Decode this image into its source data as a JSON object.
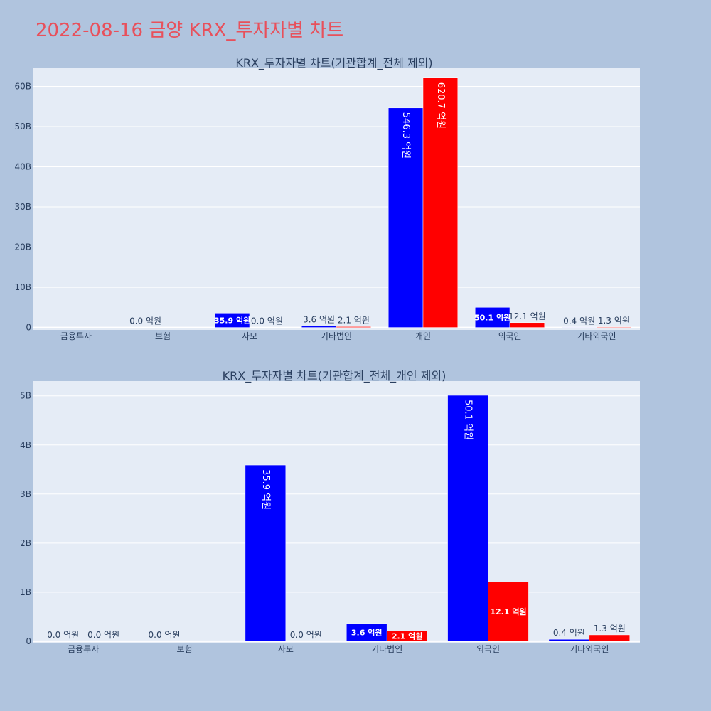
{
  "page": {
    "title": "2022-08-16 금양 KRX_투자자별 차트",
    "background": "#b0c4de",
    "title_color": "#e8505b",
    "plot_background": "#e5ecf6"
  },
  "chart_data": [
    {
      "type": "bar",
      "title": "KRX_투자자별 차트(기관합계_전체 제외)",
      "categories": [
        "금융투자",
        "보험",
        "사모",
        "기타법인",
        "개인",
        "외국인",
        "기타외국인"
      ],
      "ylim": [
        -600000000,
        64500000000
      ],
      "yticks": [
        0,
        10000000000,
        20000000000,
        30000000000,
        40000000000,
        50000000000,
        60000000000
      ],
      "ytick_labels": [
        "0",
        "10B",
        "20B",
        "30B",
        "40B",
        "50B",
        "60B"
      ],
      "grid": true,
      "series": [
        {
          "color": "#0000ff",
          "values": [
            null,
            0,
            3590000000,
            360000000,
            54630000000,
            5010000000,
            40000000
          ],
          "labels": [
            null,
            "0.0 억원",
            "35.9 억원",
            "3.6 억원",
            "546.3 억원",
            "50.1 억원",
            "0.4 억원"
          ]
        },
        {
          "color": "#ff0000",
          "values": [
            null,
            null,
            0,
            210000000,
            62070000000,
            1210000000,
            130000000
          ],
          "labels": [
            null,
            null,
            "0.0 억원",
            "2.1 억원",
            "620.7 억원",
            "12.1 억원",
            "1.3 억원"
          ]
        }
      ]
    },
    {
      "type": "bar",
      "title": "KRX_투자자별 차트(기관합계_전체_개인 제외)",
      "categories": [
        "금융투자",
        "보험",
        "사모",
        "기타법인",
        "외국인",
        "기타외국인"
      ],
      "ylim": [
        -30000000,
        5300000000
      ],
      "yticks": [
        0,
        1000000000,
        2000000000,
        3000000000,
        4000000000,
        5000000000
      ],
      "ytick_labels": [
        "0",
        "1B",
        "2B",
        "3B",
        "4B",
        "5B"
      ],
      "grid": true,
      "series": [
        {
          "color": "#0000ff",
          "values": [
            0,
            0,
            3590000000,
            360000000,
            5010000000,
            40000000
          ],
          "labels": [
            "0.0 억원",
            "0.0 억원",
            "35.9 억원",
            "3.6 억원",
            "50.1 억원",
            "0.4 억원"
          ]
        },
        {
          "color": "#ff0000",
          "values": [
            0,
            null,
            0,
            210000000,
            1210000000,
            130000000
          ],
          "labels": [
            "0.0 억원",
            null,
            "0.0 억원",
            "2.1 억원",
            "12.1 억원",
            "1.3 억원"
          ]
        }
      ]
    }
  ]
}
